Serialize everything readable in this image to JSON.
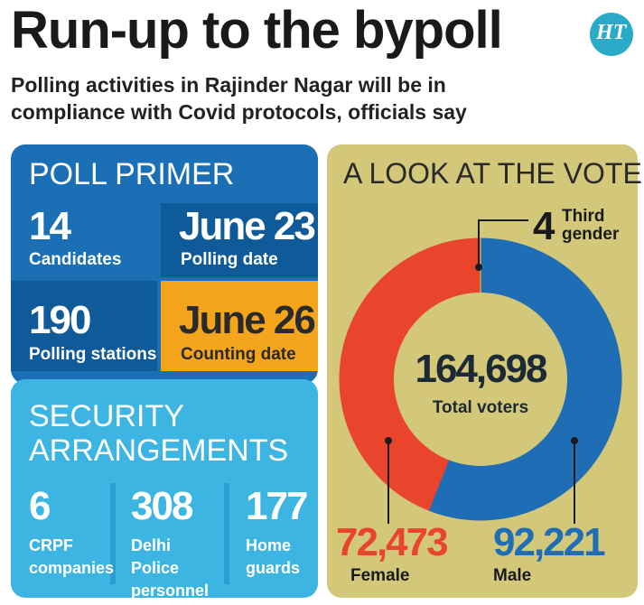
{
  "header": {
    "title": "Run-up to the bypoll",
    "subtitle": "Polling activities in Rajinder Nagar will be in compliance with Covid protocols, officials say",
    "logo": "HT"
  },
  "poll_primer": {
    "title": "POLL PRIMER",
    "items": [
      {
        "value": "14",
        "label": "Candidates"
      },
      {
        "value": "June 23",
        "label": "Polling date"
      },
      {
        "value": "190",
        "label": "Polling stations"
      },
      {
        "value": "June 26",
        "label": "Counting date"
      }
    ]
  },
  "security": {
    "title": "SECURITY ARRANGEMENTS",
    "items": [
      {
        "value": "6",
        "label": "CRPF companies"
      },
      {
        "value": "308",
        "label": "Delhi Police personnel"
      },
      {
        "value": "177",
        "label": "Home guards"
      }
    ]
  },
  "chart_data": {
    "type": "donut",
    "title": "A LOOK AT THE VOTERS",
    "categories": [
      "Male",
      "Female",
      "Third gender"
    ],
    "values": [
      92221,
      72473,
      4
    ],
    "value_labels": [
      "92,221",
      "72,473",
      "4"
    ],
    "colors": [
      "#1f6db5",
      "#e8452c",
      "#f3c53a"
    ],
    "total": {
      "value": 164698,
      "label": "164,698"
    },
    "total_label": "Total voters"
  }
}
